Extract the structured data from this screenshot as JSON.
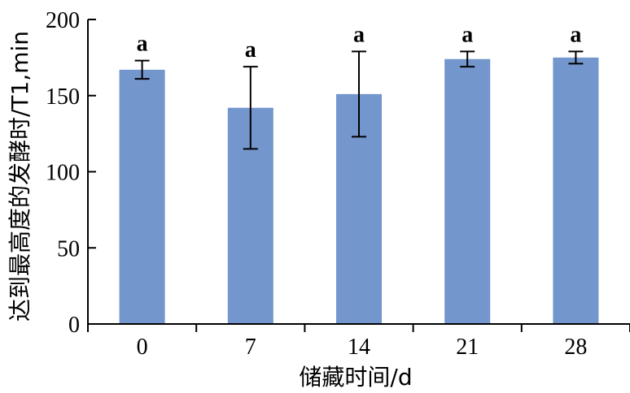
{
  "chart_data": {
    "type": "bar",
    "categories": [
      "0",
      "7",
      "14",
      "21",
      "28"
    ],
    "values": [
      167,
      142,
      151,
      174,
      175
    ],
    "errors": [
      6,
      27,
      28,
      5,
      4
    ],
    "significance": [
      "a",
      "a",
      "a",
      "a",
      "a"
    ],
    "title": "",
    "xlabel": "储藏时间/d",
    "ylabel": "达到最高度的发酵时/T1,min",
    "ylim": [
      0,
      200
    ],
    "yticks": [
      0,
      50,
      100,
      150,
      200
    ],
    "bar_color": "#7396cd",
    "grid": false
  }
}
